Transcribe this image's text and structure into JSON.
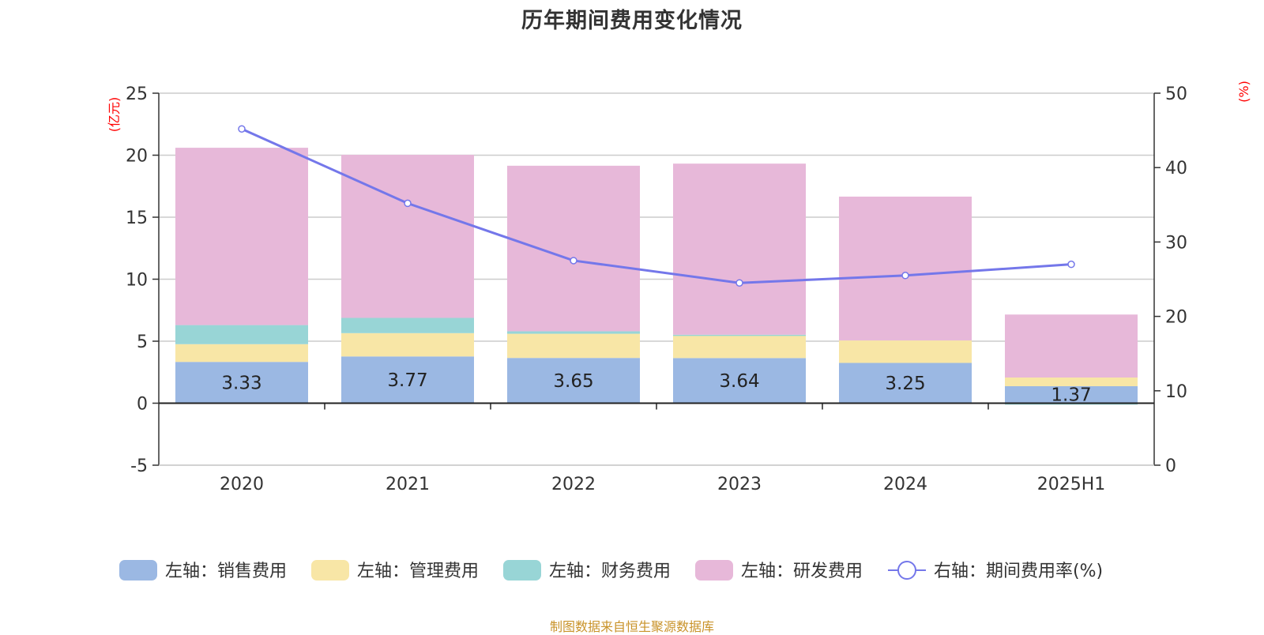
{
  "title": "历年期间费用变化情况",
  "source_note": "制图数据来自恒生聚源数据库",
  "chart_data": {
    "type": "bar",
    "stacked": true,
    "title": "历年期间费用变化情况",
    "categories": [
      "2020",
      "2021",
      "2022",
      "2023",
      "2024",
      "2025H1"
    ],
    "left_axis": {
      "unit": "(亿元)",
      "ylim": [
        -5,
        25
      ],
      "ticks": [
        -5,
        0,
        5,
        10,
        15,
        20,
        25
      ]
    },
    "right_axis": {
      "unit": "(%)",
      "ylim": [
        0,
        50
      ],
      "ticks": [
        0,
        10,
        20,
        30,
        40,
        50
      ]
    },
    "series": [
      {
        "name": "左轴：销售费用",
        "axis": "left",
        "type": "bar",
        "color": "#9bb8e3",
        "values": [
          3.33,
          3.77,
          3.65,
          3.64,
          3.25,
          1.37
        ]
      },
      {
        "name": "左轴：管理费用",
        "axis": "left",
        "type": "bar",
        "color": "#f8e6a6",
        "values": [
          1.43,
          1.88,
          1.95,
          1.87,
          1.81,
          0.7
        ]
      },
      {
        "name": "左轴：财务费用",
        "axis": "left",
        "type": "bar",
        "color": "#98d5d6",
        "values": [
          1.54,
          1.23,
          0.2,
          0.01,
          0.0,
          -0.12
        ]
      },
      {
        "name": "左轴：研发费用",
        "axis": "left",
        "type": "bar",
        "color": "#e7b8d9",
        "values": [
          14.3,
          13.15,
          13.35,
          13.8,
          11.6,
          5.08
        ]
      },
      {
        "name": "右轴：期间费用率(%)",
        "axis": "right",
        "type": "line",
        "color": "#7477ea",
        "values": [
          45.2,
          35.2,
          27.5,
          24.5,
          25.5,
          27.0
        ]
      }
    ],
    "data_labels": [
      "3.33",
      "3.77",
      "3.65",
      "3.64",
      "3.25",
      "1.37"
    ],
    "grid": true,
    "legend_position": "bottom"
  }
}
